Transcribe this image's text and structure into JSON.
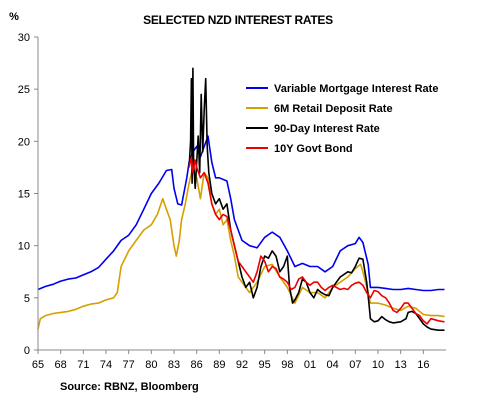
{
  "chart_data": {
    "type": "line",
    "title": "SELECTED NZD INTEREST RATES",
    "ylabel": "%",
    "source": "Source: RBNZ, Bloomberg",
    "ylim": [
      0,
      30
    ],
    "yticks": [
      0,
      5,
      10,
      15,
      20,
      25,
      30
    ],
    "xlim": [
      1965,
      2019
    ],
    "xticks": [
      1965,
      1968,
      1971,
      1974,
      1977,
      1980,
      1983,
      1986,
      1989,
      1992,
      1995,
      1998,
      2001,
      2004,
      2007,
      2010,
      2013,
      2016
    ],
    "xtick_labels": [
      "65",
      "68",
      "71",
      "74",
      "77",
      "80",
      "83",
      "86",
      "89",
      "92",
      "95",
      "98",
      "01",
      "04",
      "07",
      "10",
      "13",
      "16"
    ],
    "grid": false,
    "legend_position": "top-right",
    "series": [
      {
        "name": "Variable Mortgage Interest Rate",
        "color": "#0000ee",
        "points": [
          [
            1965,
            5.8
          ],
          [
            1966,
            6.1
          ],
          [
            1967,
            6.3
          ],
          [
            1968,
            6.6
          ],
          [
            1969,
            6.8
          ],
          [
            1970,
            6.9
          ],
          [
            1971,
            7.2
          ],
          [
            1972,
            7.5
          ],
          [
            1973,
            7.9
          ],
          [
            1974,
            8.7
          ],
          [
            1975,
            9.5
          ],
          [
            1976,
            10.5
          ],
          [
            1977,
            11.0
          ],
          [
            1978,
            12.0
          ],
          [
            1979,
            13.5
          ],
          [
            1980,
            15.0
          ],
          [
            1981,
            16.0
          ],
          [
            1982,
            17.2
          ],
          [
            1982.7,
            17.3
          ],
          [
            1983,
            15.5
          ],
          [
            1983.5,
            14.0
          ],
          [
            1984,
            13.9
          ],
          [
            1984.7,
            16.5
          ],
          [
            1985,
            18.0
          ],
          [
            1985.5,
            19.0
          ],
          [
            1986,
            19.5
          ],
          [
            1986.5,
            18.5
          ],
          [
            1987,
            19.5
          ],
          [
            1987.5,
            20.5
          ],
          [
            1988,
            18.0
          ],
          [
            1988.5,
            16.5
          ],
          [
            1989,
            16.5
          ],
          [
            1990,
            16.2
          ],
          [
            1990.5,
            14.5
          ],
          [
            1991,
            12.5
          ],
          [
            1992,
            10.5
          ],
          [
            1993,
            10.0
          ],
          [
            1994,
            9.8
          ],
          [
            1995,
            10.8
          ],
          [
            1996,
            11.3
          ],
          [
            1997,
            10.8
          ],
          [
            1998,
            9.5
          ],
          [
            1999,
            8.0
          ],
          [
            2000,
            8.3
          ],
          [
            2001,
            8.0
          ],
          [
            2002,
            8.0
          ],
          [
            2003,
            7.5
          ],
          [
            2004,
            8.0
          ],
          [
            2005,
            9.5
          ],
          [
            2006,
            10.0
          ],
          [
            2007,
            10.2
          ],
          [
            2007.5,
            10.8
          ],
          [
            2008,
            10.3
          ],
          [
            2008.7,
            8.2
          ],
          [
            2009,
            6.0
          ],
          [
            2010,
            6.0
          ],
          [
            2011,
            5.9
          ],
          [
            2012,
            5.8
          ],
          [
            2013,
            5.8
          ],
          [
            2014,
            5.9
          ],
          [
            2015,
            5.8
          ],
          [
            2016,
            5.7
          ],
          [
            2017,
            5.7
          ],
          [
            2018,
            5.8
          ],
          [
            2018.8,
            5.8
          ]
        ]
      },
      {
        "name": "6M Retail Deposit Rate",
        "color": "#d4a000",
        "points": [
          [
            1965,
            2.0
          ],
          [
            1965.3,
            3.0
          ],
          [
            1966,
            3.3
          ],
          [
            1967,
            3.5
          ],
          [
            1968,
            3.6
          ],
          [
            1969,
            3.7
          ],
          [
            1970,
            3.9
          ],
          [
            1971,
            4.2
          ],
          [
            1972,
            4.4
          ],
          [
            1973,
            4.5
          ],
          [
            1974,
            4.8
          ],
          [
            1975,
            5.0
          ],
          [
            1975.5,
            5.5
          ],
          [
            1976,
            8.0
          ],
          [
            1977,
            9.5
          ],
          [
            1978,
            10.5
          ],
          [
            1979,
            11.5
          ],
          [
            1980,
            12.0
          ],
          [
            1980.8,
            13.0
          ],
          [
            1981.5,
            14.5
          ],
          [
            1982,
            13.5
          ],
          [
            1982.5,
            12.5
          ],
          [
            1983,
            10.0
          ],
          [
            1983.3,
            9.0
          ],
          [
            1983.7,
            10.5
          ],
          [
            1984,
            12.5
          ],
          [
            1984.5,
            14.0
          ],
          [
            1985,
            16.0
          ],
          [
            1985.5,
            17.5
          ],
          [
            1986,
            16.5
          ],
          [
            1986.5,
            14.5
          ],
          [
            1987,
            17.0
          ],
          [
            1987.5,
            16.5
          ],
          [
            1988,
            14.0
          ],
          [
            1988.5,
            13.0
          ],
          [
            1989,
            13.5
          ],
          [
            1989.5,
            12.0
          ],
          [
            1990,
            12.5
          ],
          [
            1990.5,
            10.5
          ],
          [
            1991,
            9.0
          ],
          [
            1991.5,
            7.0
          ],
          [
            1992,
            6.5
          ],
          [
            1993,
            5.5
          ],
          [
            1994,
            6.5
          ],
          [
            1995,
            8.0
          ],
          [
            1996,
            8.2
          ],
          [
            1997,
            7.0
          ],
          [
            1998,
            6.0
          ],
          [
            1999,
            4.5
          ],
          [
            2000,
            6.0
          ],
          [
            2001,
            5.5
          ],
          [
            2002,
            5.5
          ],
          [
            2003,
            5.0
          ],
          [
            2004,
            6.0
          ],
          [
            2005,
            6.5
          ],
          [
            2006,
            7.0
          ],
          [
            2007,
            7.8
          ],
          [
            2007.7,
            8.2
          ],
          [
            2008,
            7.5
          ],
          [
            2008.7,
            5.5
          ],
          [
            2009,
            4.5
          ],
          [
            2010,
            4.5
          ],
          [
            2011,
            4.3
          ],
          [
            2012,
            4.0
          ],
          [
            2013,
            3.8
          ],
          [
            2014,
            4.2
          ],
          [
            2015,
            4.0
          ],
          [
            2016,
            3.4
          ],
          [
            2017,
            3.3
          ],
          [
            2018,
            3.3
          ],
          [
            2018.8,
            3.2
          ]
        ]
      },
      {
        "name": "90-Day Interest Rate",
        "color": "#000000",
        "points": [
          [
            1985,
            17.5
          ],
          [
            1985.2,
            20.0
          ],
          [
            1985.3,
            26.0
          ],
          [
            1985.4,
            16.0
          ],
          [
            1985.5,
            27.0
          ],
          [
            1985.6,
            18.0
          ],
          [
            1985.8,
            15.5
          ],
          [
            1986,
            18.0
          ],
          [
            1986.2,
            20.5
          ],
          [
            1986.4,
            17.0
          ],
          [
            1986.6,
            24.5
          ],
          [
            1986.8,
            19.0
          ],
          [
            1987,
            23.0
          ],
          [
            1987.2,
            26.0
          ],
          [
            1987.4,
            19.5
          ],
          [
            1987.6,
            17.0
          ],
          [
            1988,
            15.0
          ],
          [
            1988.5,
            14.0
          ],
          [
            1989,
            14.5
          ],
          [
            1989.5,
            13.5
          ],
          [
            1990,
            14.0
          ],
          [
            1990.5,
            11.5
          ],
          [
            1991,
            10.0
          ],
          [
            1991.5,
            8.5
          ],
          [
            1992,
            7.0
          ],
          [
            1992.5,
            6.0
          ],
          [
            1993,
            6.5
          ],
          [
            1993.5,
            5.0
          ],
          [
            1994,
            6.0
          ],
          [
            1994.5,
            8.0
          ],
          [
            1995,
            9.0
          ],
          [
            1995.5,
            8.8
          ],
          [
            1996,
            9.5
          ],
          [
            1996.5,
            9.0
          ],
          [
            1997,
            7.5
          ],
          [
            1997.5,
            8.0
          ],
          [
            1998,
            9.0
          ],
          [
            1998.3,
            6.0
          ],
          [
            1998.7,
            4.5
          ],
          [
            1999,
            4.8
          ],
          [
            1999.5,
            5.5
          ],
          [
            2000,
            6.8
          ],
          [
            2000.5,
            6.5
          ],
          [
            2001,
            5.5
          ],
          [
            2001.5,
            5.0
          ],
          [
            2002,
            5.8
          ],
          [
            2002.5,
            5.5
          ],
          [
            2003,
            5.3
          ],
          [
            2003.5,
            5.2
          ],
          [
            2004,
            6.0
          ],
          [
            2004.5,
            6.5
          ],
          [
            2005,
            7.0
          ],
          [
            2006,
            7.5
          ],
          [
            2006.5,
            7.4
          ],
          [
            2007,
            8.0
          ],
          [
            2007.5,
            8.8
          ],
          [
            2008,
            8.7
          ],
          [
            2008.5,
            6.5
          ],
          [
            2008.8,
            4.5
          ],
          [
            2009,
            3.0
          ],
          [
            2009.5,
            2.7
          ],
          [
            2010,
            2.8
          ],
          [
            2010.5,
            3.2
          ],
          [
            2011,
            2.9
          ],
          [
            2011.5,
            2.7
          ],
          [
            2012,
            2.6
          ],
          [
            2013,
            2.7
          ],
          [
            2013.7,
            3.0
          ],
          [
            2014,
            3.6
          ],
          [
            2014.5,
            3.7
          ],
          [
            2015,
            3.5
          ],
          [
            2015.5,
            3.0
          ],
          [
            2016,
            2.5
          ],
          [
            2016.5,
            2.2
          ],
          [
            2017,
            2.0
          ],
          [
            2018,
            1.9
          ],
          [
            2018.8,
            1.9
          ]
        ]
      },
      {
        "name": "10Y Govt Bond",
        "color": "#ee0000",
        "points": [
          [
            1985,
            17.5
          ],
          [
            1985.3,
            18.5
          ],
          [
            1985.5,
            17.0
          ],
          [
            1985.8,
            18.2
          ],
          [
            1986,
            17.5
          ],
          [
            1986.5,
            16.5
          ],
          [
            1987,
            17.0
          ],
          [
            1987.5,
            16.0
          ],
          [
            1988,
            14.0
          ],
          [
            1988.5,
            13.0
          ],
          [
            1989,
            12.5
          ],
          [
            1989.5,
            13.0
          ],
          [
            1990,
            12.8
          ],
          [
            1990.5,
            11.5
          ],
          [
            1991,
            10.0
          ],
          [
            1991.5,
            8.5
          ],
          [
            1992,
            8.0
          ],
          [
            1992.5,
            7.5
          ],
          [
            1993,
            7.0
          ],
          [
            1993.5,
            6.5
          ],
          [
            1994,
            7.5
          ],
          [
            1994.5,
            9.0
          ],
          [
            1995,
            8.5
          ],
          [
            1995.5,
            7.5
          ],
          [
            1996,
            8.0
          ],
          [
            1996.5,
            7.8
          ],
          [
            1997,
            7.0
          ],
          [
            1997.5,
            6.8
          ],
          [
            1998,
            6.5
          ],
          [
            1998.5,
            5.8
          ],
          [
            1999,
            6.0
          ],
          [
            1999.5,
            6.8
          ],
          [
            2000,
            7.0
          ],
          [
            2000.5,
            6.5
          ],
          [
            2001,
            6.2
          ],
          [
            2001.5,
            6.5
          ],
          [
            2002,
            6.5
          ],
          [
            2002.5,
            6.0
          ],
          [
            2003,
            5.7
          ],
          [
            2003.5,
            6.0
          ],
          [
            2004,
            6.2
          ],
          [
            2004.5,
            6.0
          ],
          [
            2005,
            5.8
          ],
          [
            2005.5,
            5.9
          ],
          [
            2006,
            5.8
          ],
          [
            2006.5,
            6.2
          ],
          [
            2007,
            6.4
          ],
          [
            2007.5,
            6.5
          ],
          [
            2008,
            6.2
          ],
          [
            2008.5,
            5.5
          ],
          [
            2009,
            5.0
          ],
          [
            2009.5,
            5.7
          ],
          [
            2010,
            5.6
          ],
          [
            2010.5,
            5.2
          ],
          [
            2011,
            5.0
          ],
          [
            2011.5,
            4.5
          ],
          [
            2012,
            3.8
          ],
          [
            2012.5,
            3.6
          ],
          [
            2013,
            4.0
          ],
          [
            2013.5,
            4.5
          ],
          [
            2014,
            4.5
          ],
          [
            2014.5,
            4.0
          ],
          [
            2015,
            3.5
          ],
          [
            2015.5,
            3.3
          ],
          [
            2016,
            2.8
          ],
          [
            2016.5,
            2.5
          ],
          [
            2017,
            3.0
          ],
          [
            2017.5,
            2.9
          ],
          [
            2018,
            2.8
          ],
          [
            2018.8,
            2.7
          ]
        ]
      }
    ]
  }
}
